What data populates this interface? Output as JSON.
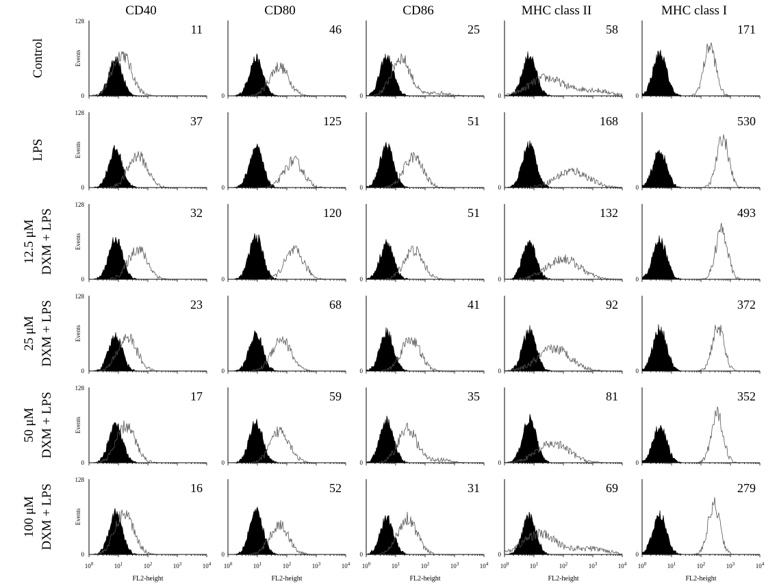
{
  "figure": {
    "y_max_label": "128",
    "y_min_label": "0",
    "y_axis_label": "Events",
    "x_axis_label": "FL2-height",
    "x_tick_labels": [
      {
        "base": "10",
        "exp": "0"
      },
      {
        "base": "10",
        "exp": "1"
      },
      {
        "base": "10",
        "exp": "2"
      },
      {
        "base": "10",
        "exp": "3"
      },
      {
        "base": "10",
        "exp": "4"
      }
    ]
  },
  "columns": [
    "CD40",
    "CD80",
    "CD86",
    "MHC class II",
    "MHC class I"
  ],
  "rows": [
    {
      "label_lines": [
        "Control"
      ]
    },
    {
      "label_lines": [
        "LPS"
      ]
    },
    {
      "label_lines": [
        "12.5 μM",
        "DXM + LPS"
      ]
    },
    {
      "label_lines": [
        "25 μM",
        "DXM + LPS"
      ]
    },
    {
      "label_lines": [
        "50 μM",
        "DXM + LPS"
      ]
    },
    {
      "label_lines": [
        "100 μM",
        "DXM + LPS"
      ]
    }
  ],
  "colors": {
    "isotype_fill": "#000000",
    "stain_line": "#555555",
    "axis": "#000000"
  },
  "chart_data": {
    "type": "histogram-grid",
    "x_scale": "log",
    "xlim": [
      1,
      10000
    ],
    "ylim": [
      0,
      128
    ],
    "xlabel": "FL2-height",
    "ylabel": "Events",
    "isotype_peaks": [
      8,
      9,
      5,
      7,
      4
    ],
    "mfi_values": [
      [
        "11",
        "46",
        "25",
        "58",
        "171"
      ],
      [
        "37",
        "125",
        "51",
        "168",
        "530"
      ],
      [
        "32",
        "120",
        "51",
        "132",
        "493"
      ],
      [
        "23",
        "68",
        "41",
        "92",
        "372"
      ],
      [
        "17",
        "59",
        "35",
        "81",
        "352"
      ],
      [
        "16",
        "52",
        "31",
        "69",
        "279"
      ]
    ],
    "stained_peak_positions": [
      [
        13,
        55,
        15,
        25,
        200
      ],
      [
        45,
        170,
        40,
        200,
        550
      ],
      [
        45,
        180,
        40,
        100,
        500
      ],
      [
        20,
        65,
        32,
        50,
        380
      ],
      [
        18,
        60,
        25,
        45,
        360
      ],
      [
        16,
        55,
        25,
        15,
        280
      ]
    ],
    "stained_peak_heights": [
      [
        72,
        50,
        65,
        30,
        85
      ],
      [
        55,
        45,
        52,
        28,
        85
      ],
      [
        52,
        48,
        50,
        35,
        85
      ],
      [
        58,
        55,
        55,
        38,
        75
      ],
      [
        62,
        55,
        58,
        32,
        82
      ],
      [
        70,
        50,
        62,
        35,
        85
      ]
    ]
  }
}
